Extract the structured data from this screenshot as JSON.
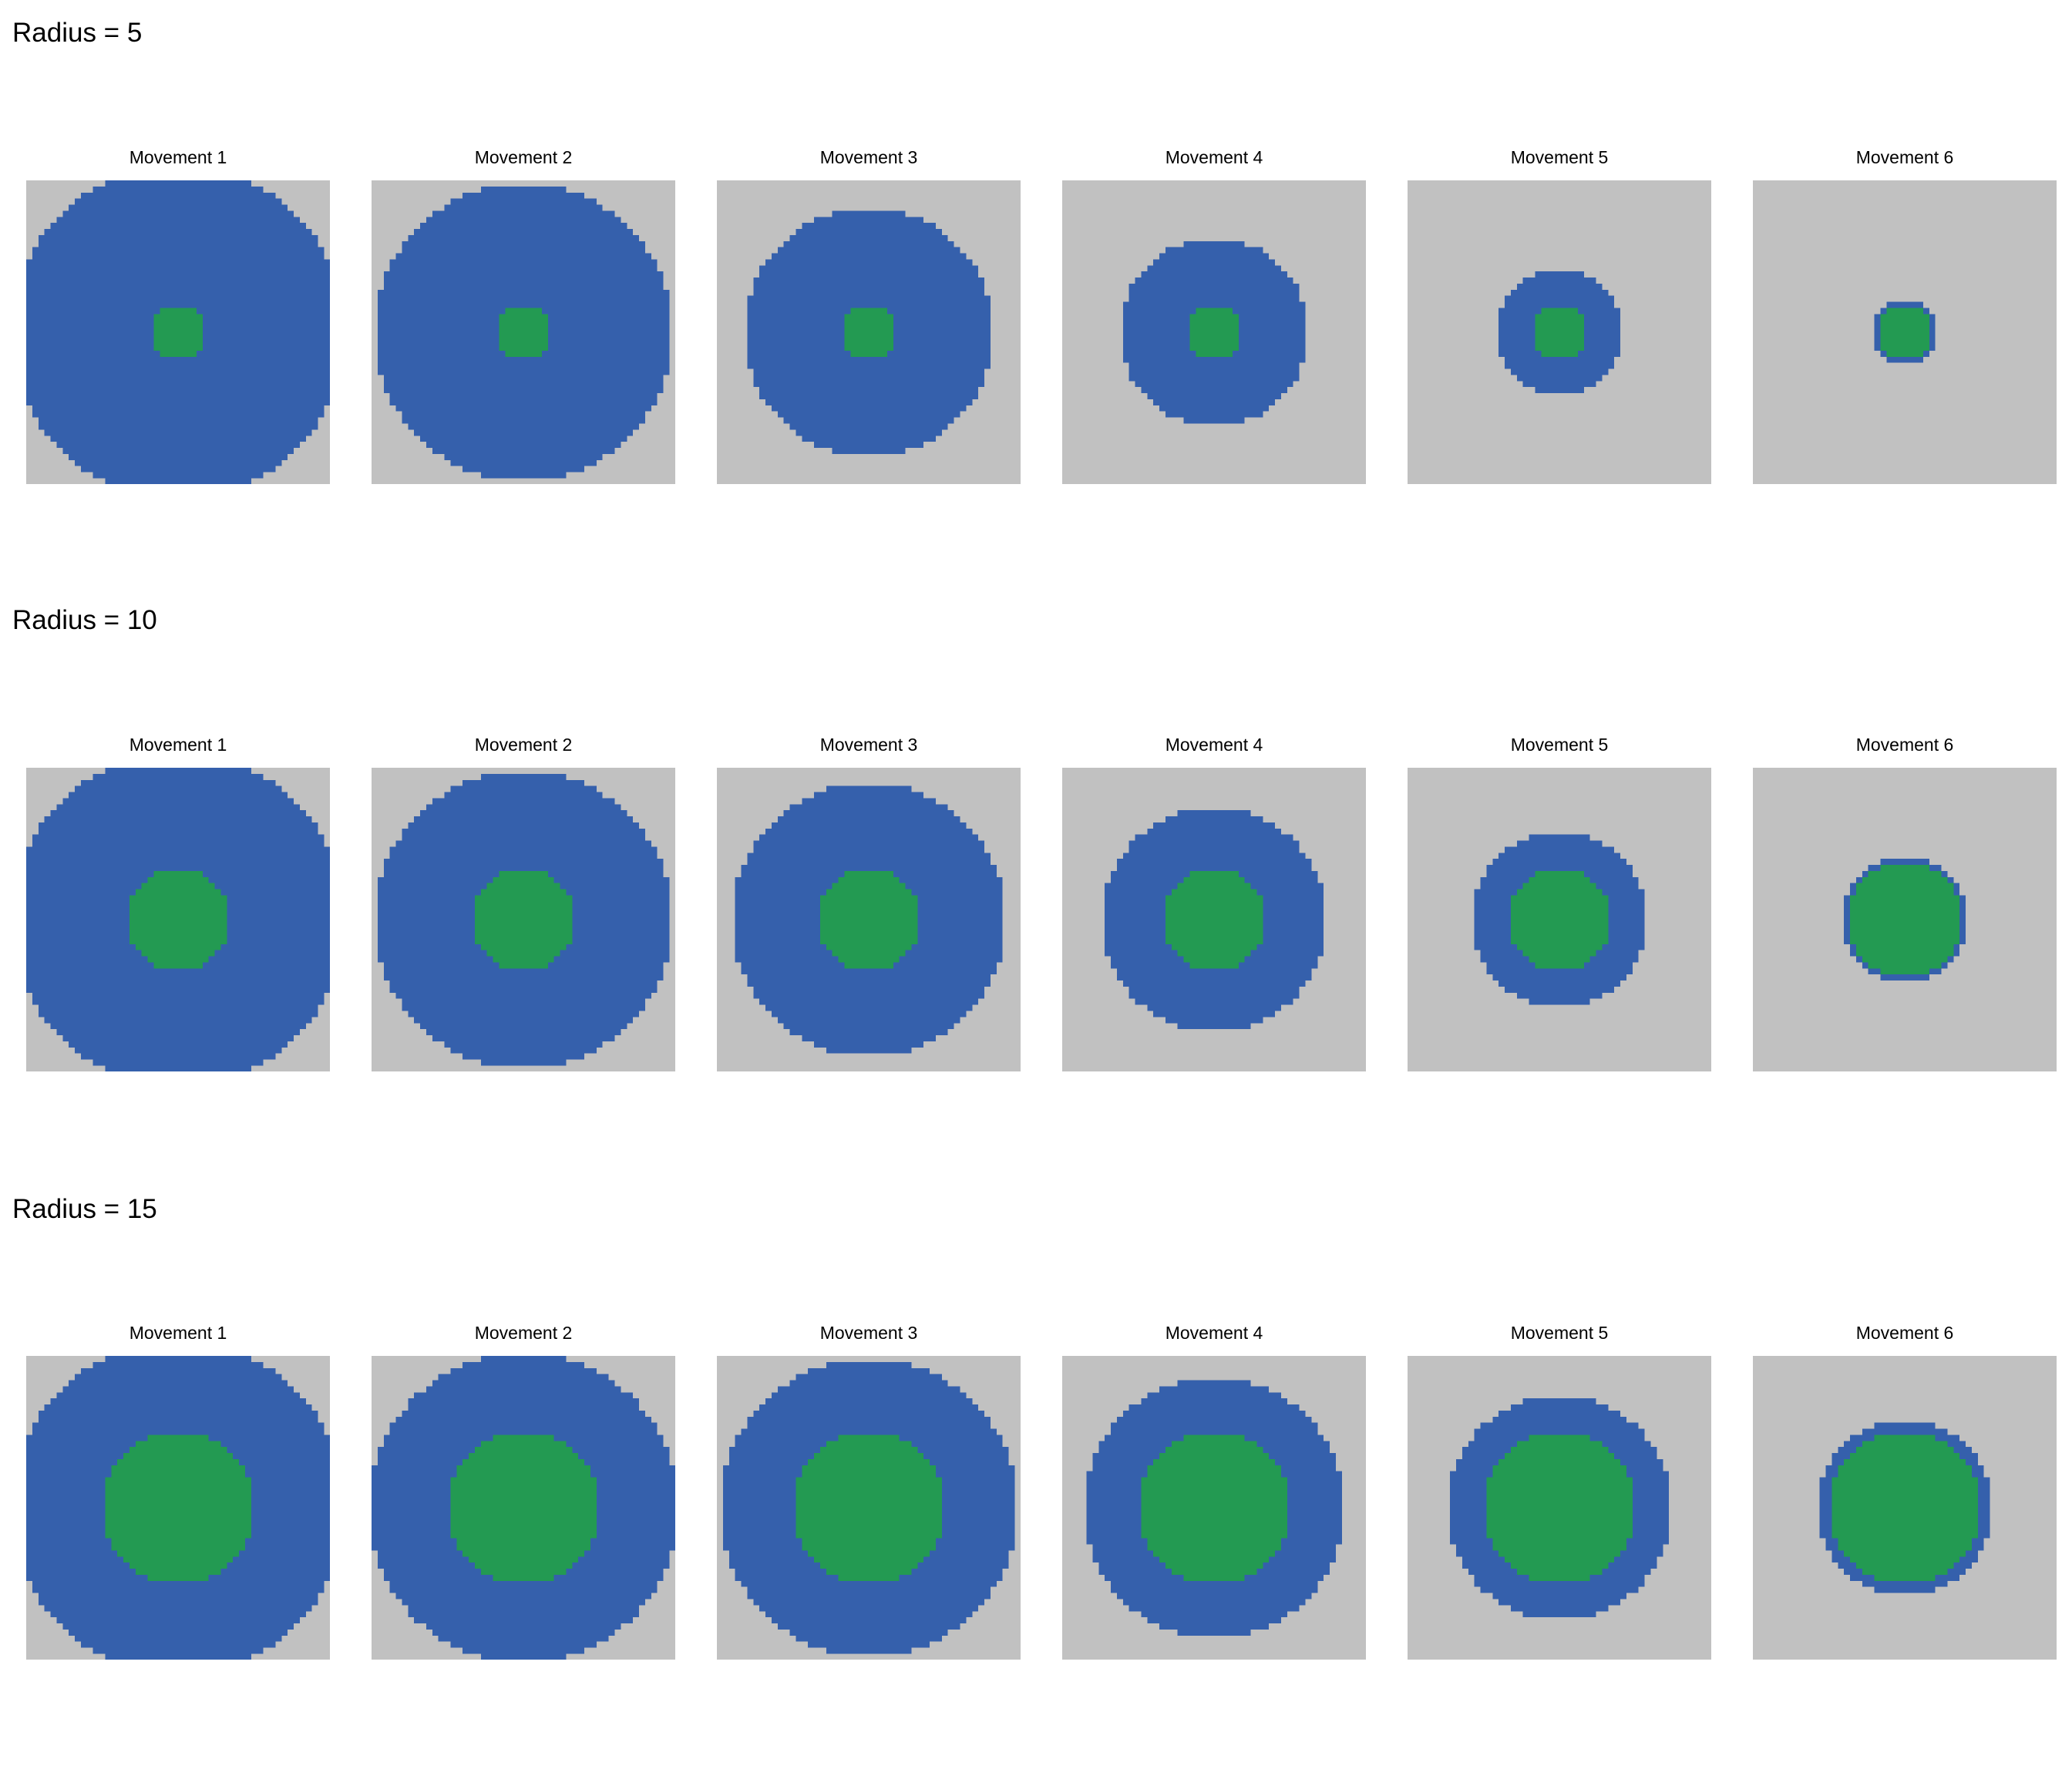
{
  "colors": {
    "background": "#c1c1c1",
    "outer": "#3560ac",
    "inner": "#239a52"
  },
  "rows": [
    {
      "title": "Radius = 5",
      "radius": 5,
      "panels": [
        {
          "title": "Movement 1",
          "outer_radius": 27,
          "inner_radius": 4
        },
        {
          "title": "Movement 2",
          "outer_radius": 24,
          "inner_radius": 4
        },
        {
          "title": "Movement 3",
          "outer_radius": 20,
          "inner_radius": 4
        },
        {
          "title": "Movement 4",
          "outer_radius": 15,
          "inner_radius": 4
        },
        {
          "title": "Movement 5",
          "outer_radius": 10,
          "inner_radius": 4
        },
        {
          "title": "Movement 6",
          "outer_radius": 5,
          "inner_radius": 4
        }
      ]
    },
    {
      "title": "Radius = 10",
      "radius": 10,
      "panels": [
        {
          "title": "Movement 1",
          "outer_radius": 27,
          "inner_radius": 8
        },
        {
          "title": "Movement 2",
          "outer_radius": 24,
          "inner_radius": 8
        },
        {
          "title": "Movement 3",
          "outer_radius": 22,
          "inner_radius": 8
        },
        {
          "title": "Movement 4",
          "outer_radius": 18,
          "inner_radius": 8
        },
        {
          "title": "Movement 5",
          "outer_radius": 14,
          "inner_radius": 8
        },
        {
          "title": "Movement 6",
          "outer_radius": 10,
          "inner_radius": 9
        }
      ]
    },
    {
      "title": "Radius = 15",
      "radius": 15,
      "panels": [
        {
          "title": "Movement 1",
          "outer_radius": 27,
          "inner_radius": 12
        },
        {
          "title": "Movement 2",
          "outer_radius": 25,
          "inner_radius": 12
        },
        {
          "title": "Movement 3",
          "outer_radius": 24,
          "inner_radius": 12
        },
        {
          "title": "Movement 4",
          "outer_radius": 21,
          "inner_radius": 12
        },
        {
          "title": "Movement 5",
          "outer_radius": 18,
          "inner_radius": 12
        },
        {
          "title": "Movement 6",
          "outer_radius": 14,
          "inner_radius": 12
        }
      ]
    }
  ]
}
